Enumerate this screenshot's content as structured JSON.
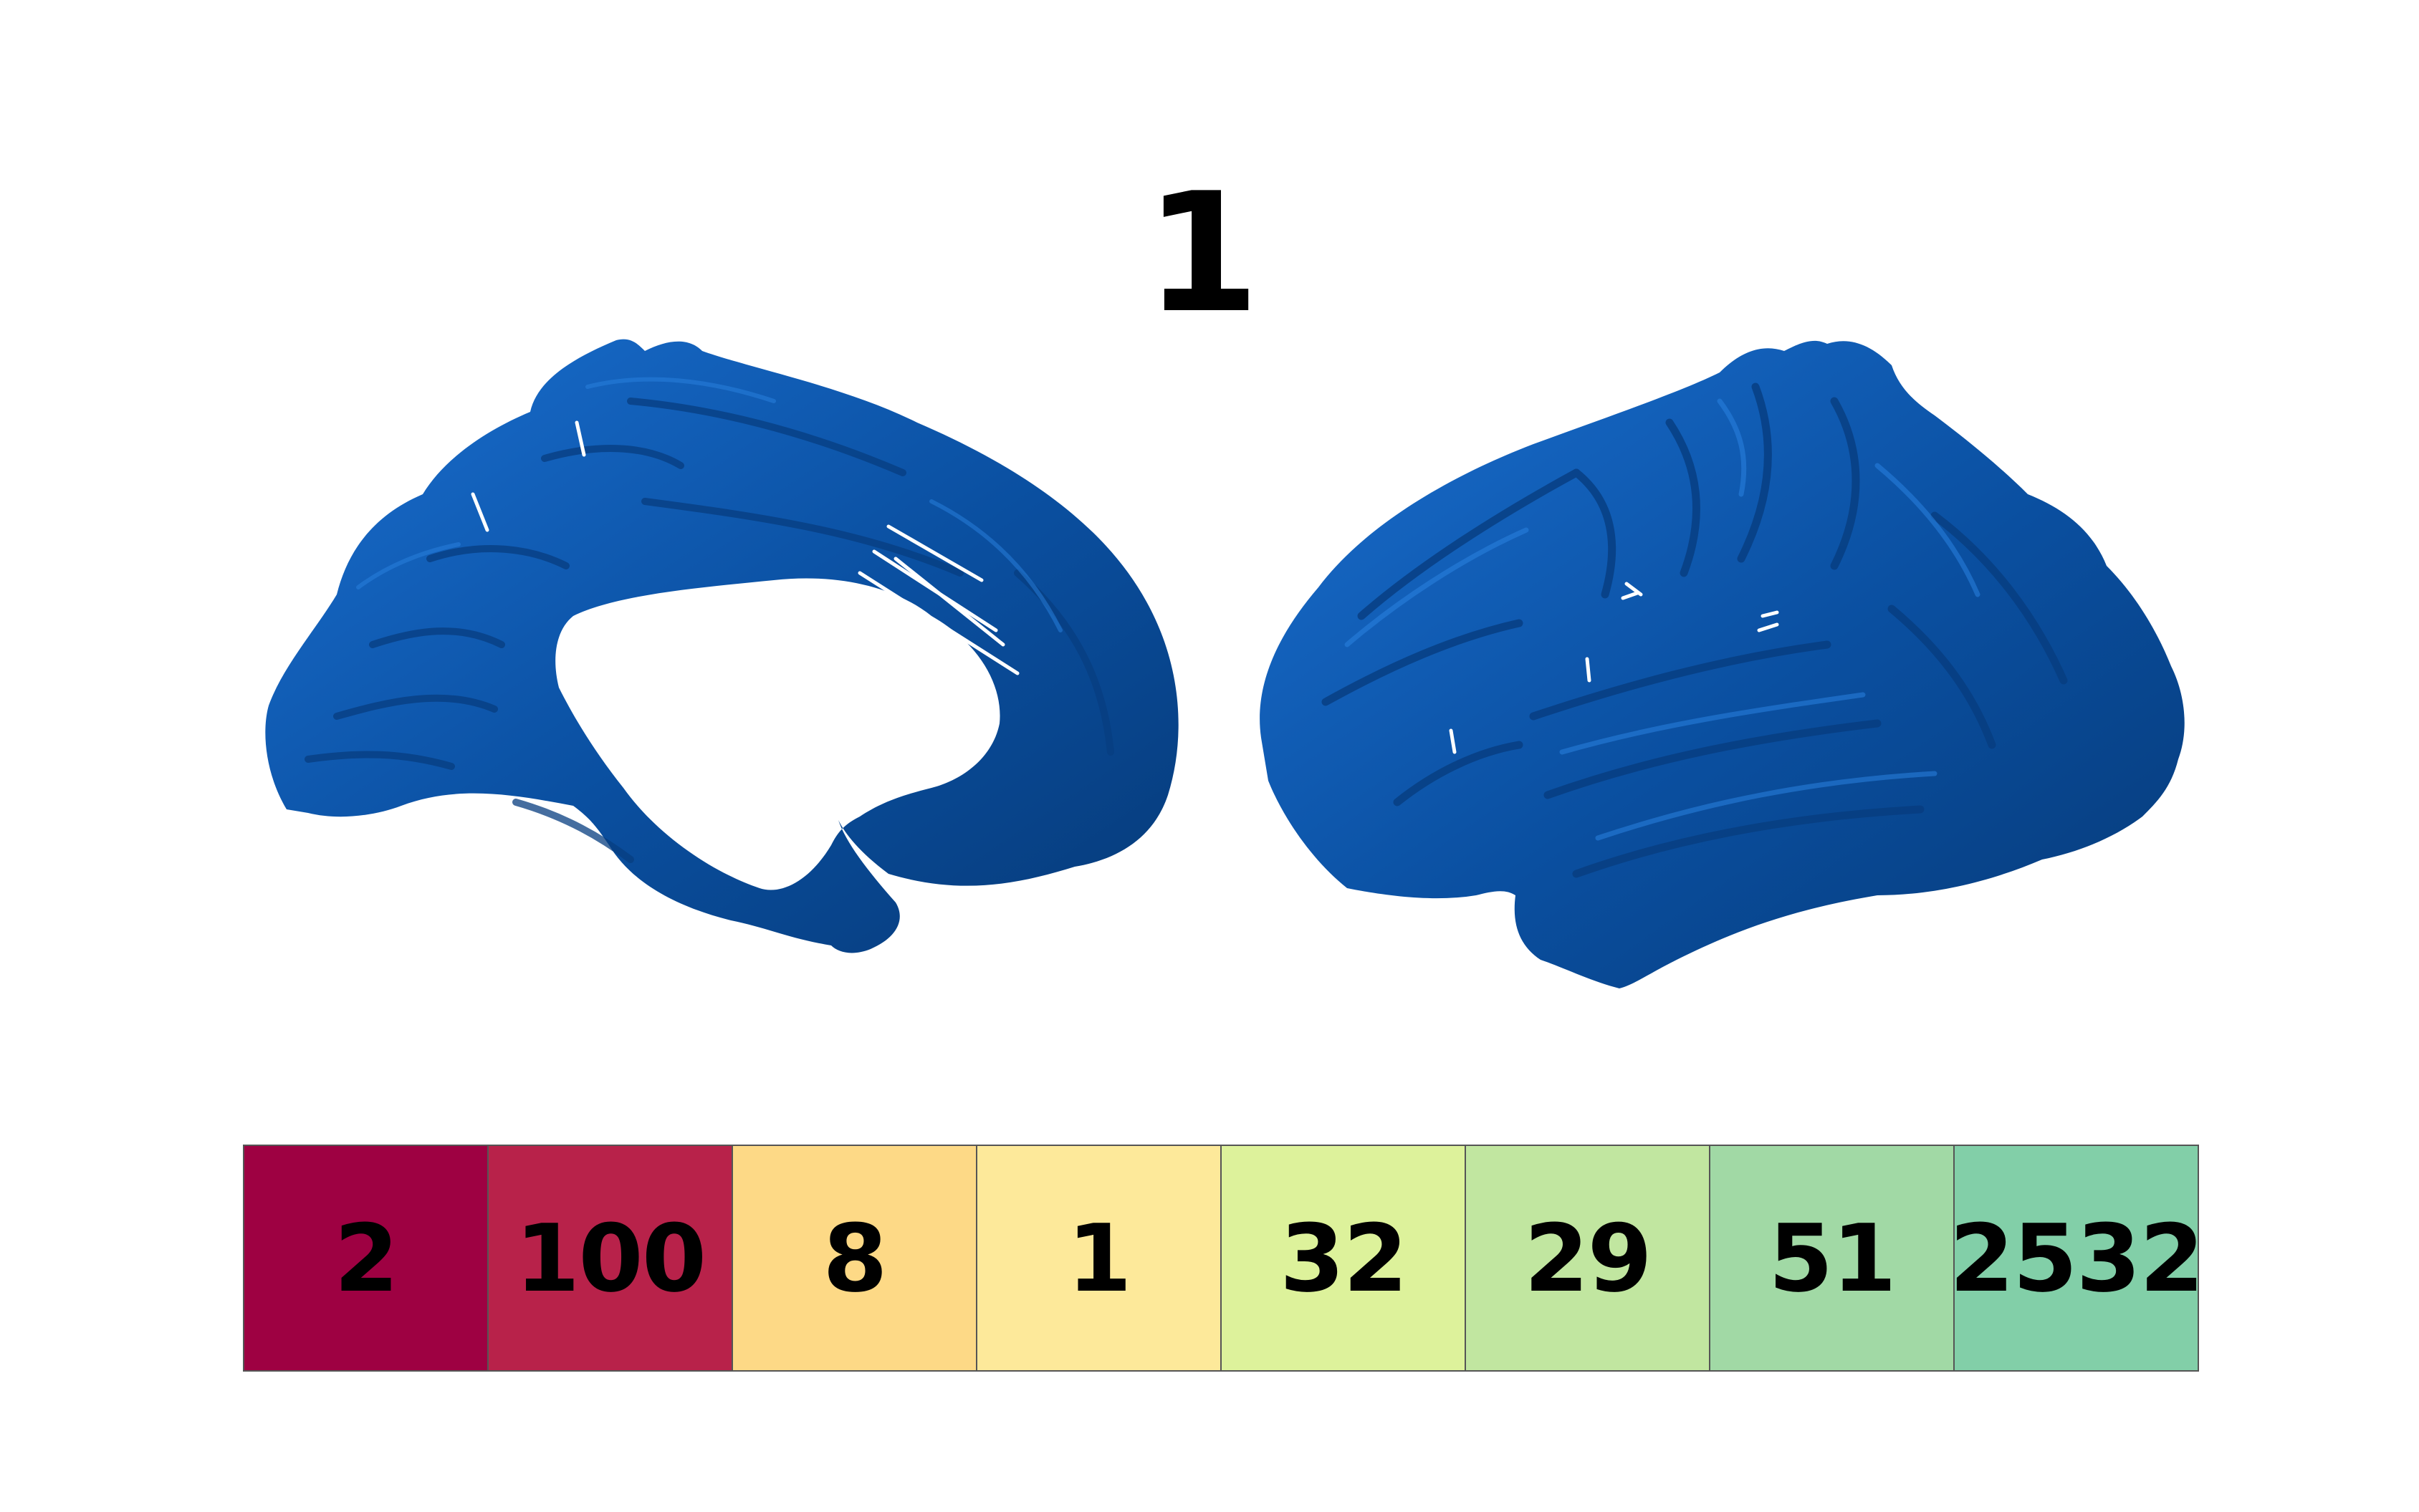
{
  "title": "1",
  "hemisphere_color": "#0a4fa0",
  "hemisphere_highlight": "#1a6fd0",
  "hemisphere_shadow": "#063a78",
  "hemispheres": [
    {
      "view": "medial"
    },
    {
      "view": "lateral"
    }
  ],
  "legend": {
    "cells": [
      {
        "label": "2",
        "color": "#9e0142"
      },
      {
        "label": "100",
        "color": "#b8224a"
      },
      {
        "label": "8",
        "color": "#fdd986"
      },
      {
        "label": "1",
        "color": "#fde99a"
      },
      {
        "label": "32",
        "color": "#ddf29b"
      },
      {
        "label": "29",
        "color": "#c1e6a0"
      },
      {
        "label": "51",
        "color": "#a1d9a5"
      },
      {
        "label": "2532",
        "color": "#82cfa8"
      }
    ]
  }
}
